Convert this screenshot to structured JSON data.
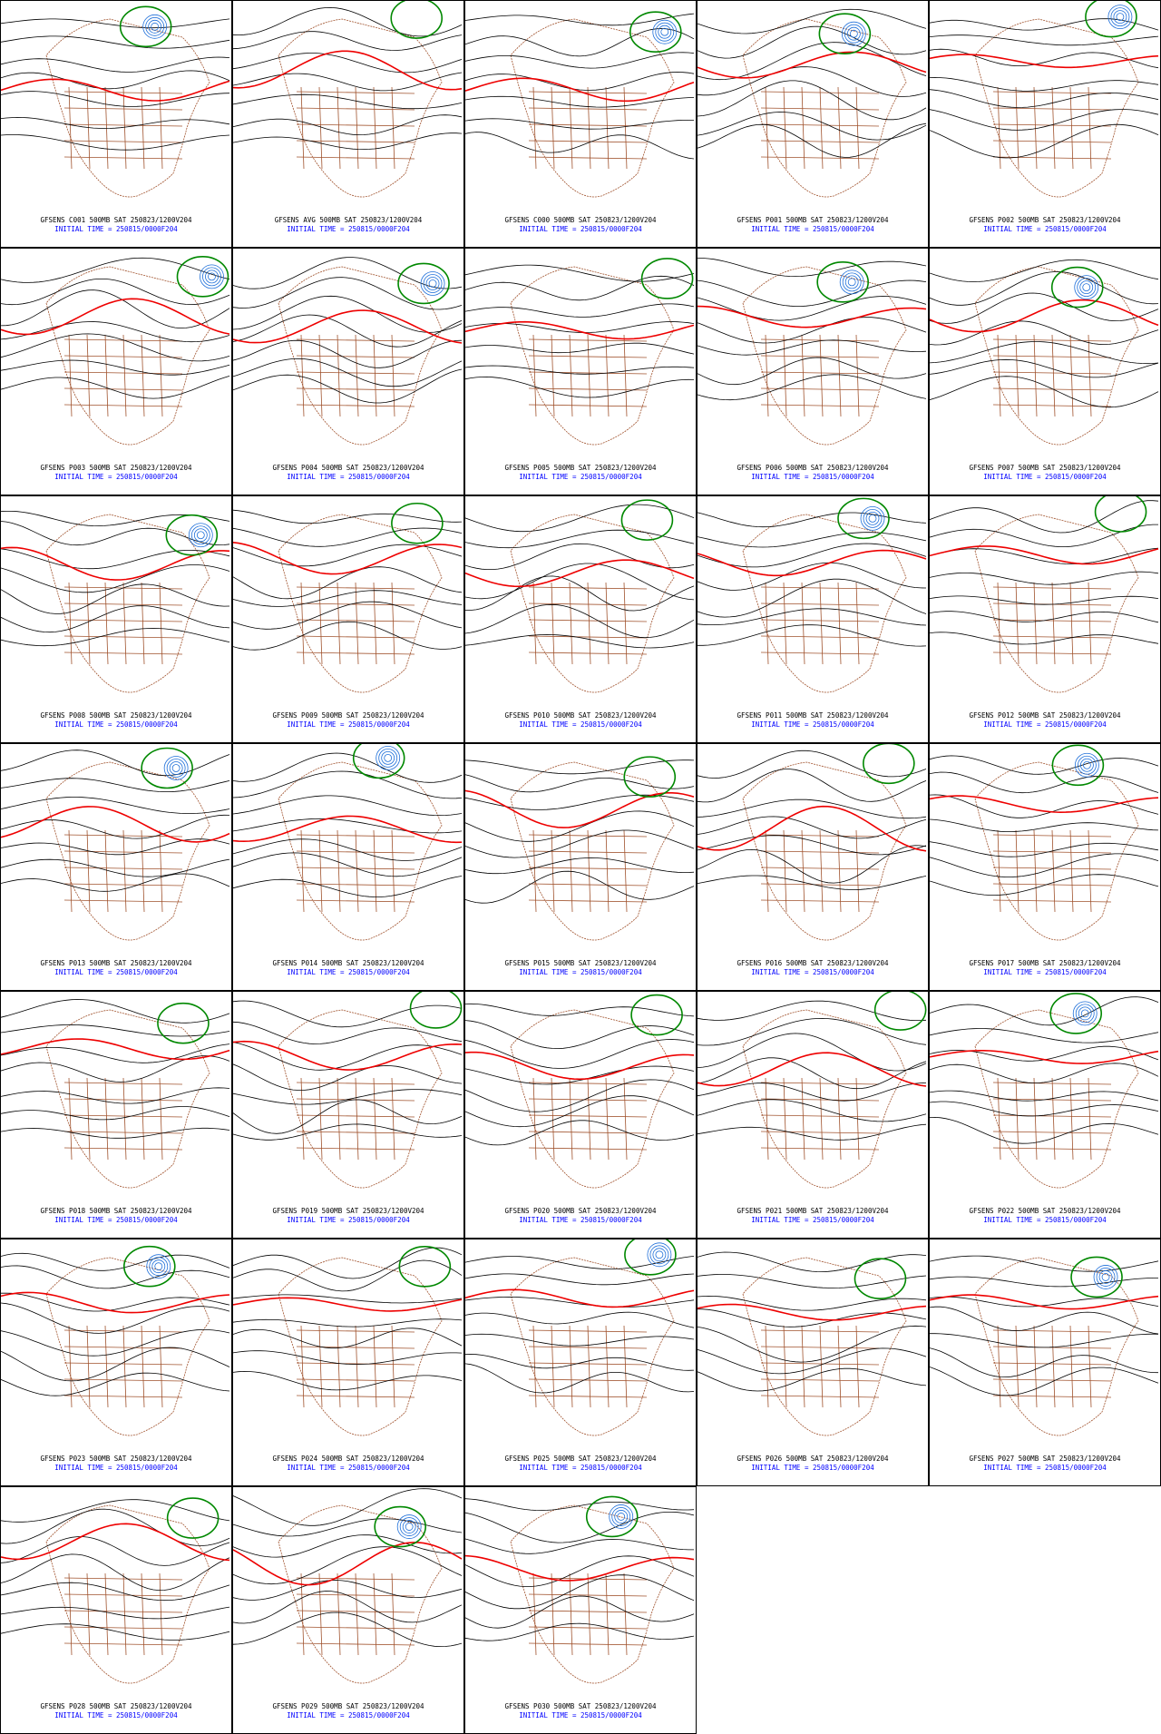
{
  "panels": [
    {
      "title": "GFSENS C001 500MB SAT 250823/1200V204",
      "init": "INITIAL TIME = 250815/0000F204"
    },
    {
      "title": "GFSENS AVG 500MB SAT 250823/1200V204",
      "init": "INITIAL TIME = 250815/0000F204"
    },
    {
      "title": "GFSENS C000 500MB SAT 250823/1200V204",
      "init": "INITIAL TIME = 250815/0000F204"
    },
    {
      "title": "GFSENS P001 500MB SAT 250823/1200V204",
      "init": "INITIAL TIME = 250815/0000F204"
    },
    {
      "title": "GFSENS P002 500MB SAT 250823/1200V204",
      "init": "INITIAL TIME = 250815/0000F204"
    },
    {
      "title": "GFSENS P003 500MB SAT 250823/1200V204",
      "init": "INITIAL TIME = 250815/0000F204"
    },
    {
      "title": "GFSENS P004 500MB SAT 250823/1200V204",
      "init": "INITIAL TIME = 250815/0000F204"
    },
    {
      "title": "GFSENS P005 500MB SAT 250823/1200V204",
      "init": "INITIAL TIME = 250815/0000F204"
    },
    {
      "title": "GFSENS P006 500MB SAT 250823/1200V204",
      "init": "INITIAL TIME = 250815/0000F204"
    },
    {
      "title": "GFSENS P007 500MB SAT 250823/1200V204",
      "init": "INITIAL TIME = 250815/0000F204"
    },
    {
      "title": "GFSENS P008 500MB SAT 250823/1200V204",
      "init": "INITIAL TIME = 250815/0000F204"
    },
    {
      "title": "GFSENS P009 500MB SAT 250823/1200V204",
      "init": "INITIAL TIME = 250815/0000F204"
    },
    {
      "title": "GFSENS P010 500MB SAT 250823/1200V204",
      "init": "INITIAL TIME = 250815/0000F204"
    },
    {
      "title": "GFSENS P011 500MB SAT 250823/1200V204",
      "init": "INITIAL TIME = 250815/0000F204"
    },
    {
      "title": "GFSENS P012 500MB SAT 250823/1200V204",
      "init": "INITIAL TIME = 250815/0000F204"
    },
    {
      "title": "GFSENS P013 500MB SAT 250823/1200V204",
      "init": "INITIAL TIME = 250815/0000F204"
    },
    {
      "title": "GFSENS P014 500MB SAT 250823/1200V204",
      "init": "INITIAL TIME = 250815/0000F204"
    },
    {
      "title": "GFSENS P015 500MB SAT 250823/1200V204",
      "init": "INITIAL TIME = 250815/0000F204"
    },
    {
      "title": "GFSENS P016 500MB SAT 250823/1200V204",
      "init": "INITIAL TIME = 250815/0000F204"
    },
    {
      "title": "GFSENS P017 500MB SAT 250823/1200V204",
      "init": "INITIAL TIME = 250815/0000F204"
    },
    {
      "title": "GFSENS P018 500MB SAT 250823/1200V204",
      "init": "INITIAL TIME = 250815/0000F204"
    },
    {
      "title": "GFSENS P019 500MB SAT 250823/1200V204",
      "init": "INITIAL TIME = 250815/0000F204"
    },
    {
      "title": "GFSENS P020 500MB SAT 250823/1200V204",
      "init": "INITIAL TIME = 250815/0000F204"
    },
    {
      "title": "GFSENS P021 500MB SAT 250823/1200V204",
      "init": "INITIAL TIME = 250815/0000F204"
    },
    {
      "title": "GFSENS P022 500MB SAT 250823/1200V204",
      "init": "INITIAL TIME = 250815/0000F204"
    },
    {
      "title": "GFSENS P023 500MB SAT 250823/1200V204",
      "init": "INITIAL TIME = 250815/0000F204"
    },
    {
      "title": "GFSENS P024 500MB SAT 250823/1200V204",
      "init": "INITIAL TIME = 250815/0000F204"
    },
    {
      "title": "GFSENS P025 500MB SAT 250823/1200V204",
      "init": "INITIAL TIME = 250815/0000F204"
    },
    {
      "title": "GFSENS P026 500MB SAT 250823/1200V204",
      "init": "INITIAL TIME = 250815/0000F204"
    },
    {
      "title": "GFSENS P027 500MB SAT 250823/1200V204",
      "init": "INITIAL TIME = 250815/0000F204"
    },
    {
      "title": "GFSENS P028 500MB SAT 250823/1200V204",
      "init": "INITIAL TIME = 250815/0000F204"
    },
    {
      "title": "GFSENS P029 500MB SAT 250823/1200V204",
      "init": "INITIAL TIME = 250815/0000F204"
    },
    {
      "title": "GFSENS P030 500MB SAT 250823/1200V204",
      "init": "INITIAL TIME = 250815/0000F204"
    }
  ]
}
